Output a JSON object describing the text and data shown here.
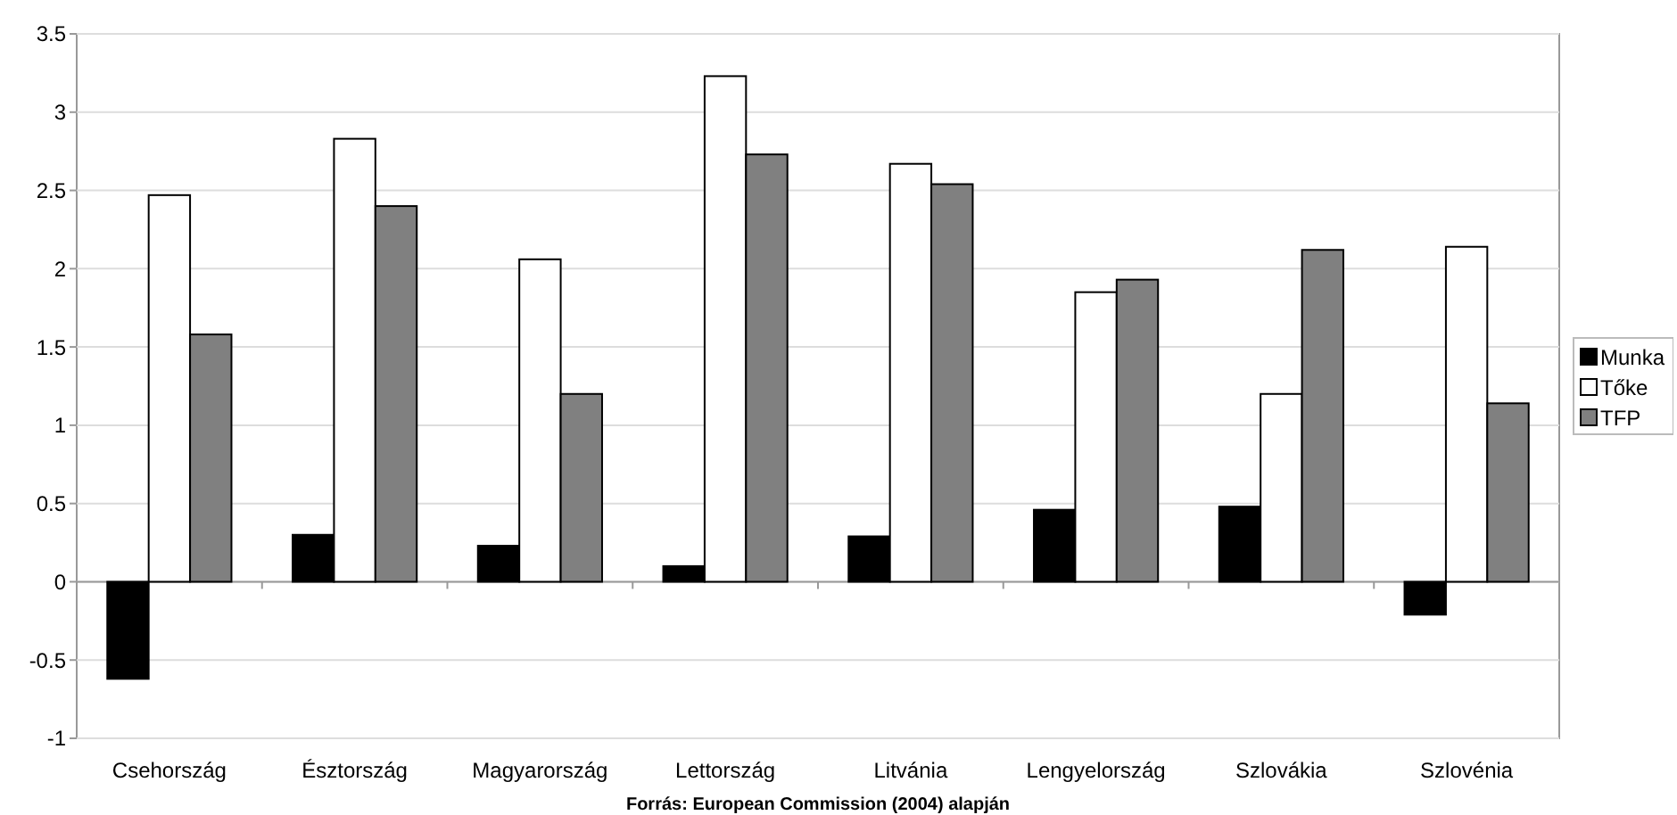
{
  "chart_data": {
    "type": "bar",
    "categories": [
      "Csehország",
      "Észtország",
      "Magyarország",
      "Lettország",
      "Litvánia",
      "Lengyelország",
      "Szlovákia",
      "Szlovénia"
    ],
    "series": [
      {
        "name": "Munka",
        "color": "#000000",
        "values": [
          -0.62,
          0.3,
          0.23,
          0.1,
          0.29,
          0.46,
          0.48,
          -0.21
        ]
      },
      {
        "name": "Tőke",
        "color": "#ffffff",
        "values": [
          2.47,
          2.83,
          2.06,
          3.23,
          2.67,
          1.85,
          1.2,
          2.14
        ]
      },
      {
        "name": "TFP",
        "color": "#808080",
        "values": [
          1.58,
          2.4,
          1.2,
          2.73,
          2.54,
          1.93,
          2.12,
          1.14
        ]
      }
    ],
    "ylim": [
      -1,
      3.5
    ],
    "yticks": [
      {
        "value": -1,
        "label": "-1"
      },
      {
        "value": -0.5,
        "label": "-0.5"
      },
      {
        "value": 0,
        "label": "0"
      },
      {
        "value": 0.5,
        "label": "0.5"
      },
      {
        "value": 1,
        "label": "1"
      },
      {
        "value": 1.5,
        "label": "1.5"
      },
      {
        "value": 2,
        "label": "2"
      },
      {
        "value": 2.5,
        "label": "2.5"
      },
      {
        "value": 3,
        "label": "3"
      },
      {
        "value": 3.5,
        "label": "3.5"
      }
    ],
    "grid": "y",
    "legend": "right",
    "annotations": [
      "Forrás: European Commission (2004) alapján"
    ]
  }
}
